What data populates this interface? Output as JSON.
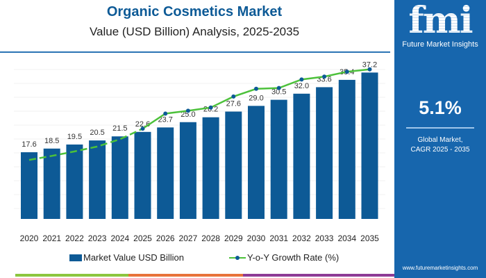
{
  "chart_data": {
    "type": "bar",
    "title": "Organic Cosmetics Market",
    "subtitle": "Value (USD Billion) Analysis, 2025-2035",
    "categories": [
      "2020",
      "2021",
      "2022",
      "2023",
      "2024",
      "2025",
      "2026",
      "2027",
      "2028",
      "2029",
      "2030",
      "2031",
      "2032",
      "2033",
      "2034",
      "2035"
    ],
    "series": [
      {
        "name": "Market Value USD Billion",
        "type": "bar",
        "color": "#0d5a96",
        "values": [
          17.6,
          18.5,
          19.5,
          20.5,
          21.5,
          22.6,
          23.7,
          25.0,
          26.2,
          27.6,
          29.0,
          30.5,
          32.0,
          33.6,
          35.4,
          37.2
        ],
        "labels": [
          "17.6",
          "18.5",
          "19.5",
          "20.5",
          "21.5",
          "22.6",
          "23.7",
          "25.0",
          "26.2",
          "27.6",
          "29.0",
          "30.5",
          "32.0",
          "33.6",
          "35.4",
          "37.2"
        ]
      },
      {
        "name": "Y-o-Y Growth Rate (%)",
        "type": "line",
        "color": "#4cc13a",
        "values": [
          15.7,
          16.7,
          17.8,
          19.0,
          20.8,
          23.4,
          27.1,
          27.8,
          28.6,
          31.3,
          33.2,
          33.4,
          35.5,
          36.2,
          37.4,
          38.0
        ]
      }
    ],
    "ylim": [
      1.2,
      40
    ],
    "grid": true,
    "legend": "bottom"
  },
  "sidebar": {
    "logo": "fmi",
    "brand": "Future Market Insights",
    "cagr_value": "5.1%",
    "cagr_label_1": "Global Market,",
    "cagr_label_2": "CAGR 2025 - 2035",
    "url": "www.futuremarketinsights.com"
  },
  "colors": {
    "strip": [
      "#8cc63f",
      "#e8733a",
      "#8e3b96"
    ]
  }
}
